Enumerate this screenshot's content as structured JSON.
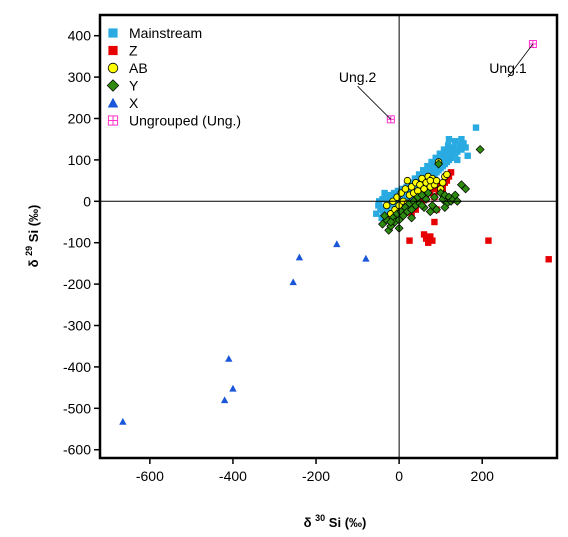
{
  "chart_data": {
    "type": "scatter",
    "xlabel_prefix": "δ",
    "xlabel_sup": "30",
    "xlabel_suffix": "Si (‰)",
    "ylabel_prefix": "δ",
    "ylabel_sup": "29",
    "ylabel_suffix": "Si (‰)",
    "xlim": [
      -720,
      380
    ],
    "ylim": [
      -620,
      450
    ],
    "xticks": [
      -600,
      -400,
      -200,
      0,
      200
    ],
    "yticks": [
      400,
      300,
      200,
      100,
      0,
      -100,
      -200,
      -300,
      -400,
      -500,
      -600
    ],
    "grid": false,
    "zero_lines": true,
    "legend_position": "top-left",
    "series": [
      {
        "name": "Mainstream",
        "marker": "square",
        "color": "#29abe2",
        "points": [
          [
            -50,
            -10
          ],
          [
            -45,
            -20
          ],
          [
            -40,
            5
          ],
          [
            -38,
            -30
          ],
          [
            -35,
            -15
          ],
          [
            -30,
            10
          ],
          [
            -28,
            -25
          ],
          [
            -25,
            -5
          ],
          [
            -22,
            15
          ],
          [
            -20,
            -35
          ],
          [
            -18,
            -10
          ],
          [
            -15,
            5
          ],
          [
            -12,
            20
          ],
          [
            -10,
            -20
          ],
          [
            -8,
            -5
          ],
          [
            -5,
            10
          ],
          [
            -3,
            25
          ],
          [
            0,
            -15
          ],
          [
            2,
            0
          ],
          [
            5,
            15
          ],
          [
            7,
            30
          ],
          [
            10,
            -10
          ],
          [
            12,
            5
          ],
          [
            15,
            20
          ],
          [
            18,
            35
          ],
          [
            20,
            0
          ],
          [
            22,
            15
          ],
          [
            25,
            30
          ],
          [
            28,
            45
          ],
          [
            30,
            10
          ],
          [
            32,
            25
          ],
          [
            35,
            40
          ],
          [
            38,
            55
          ],
          [
            40,
            20
          ],
          [
            42,
            35
          ],
          [
            45,
            50
          ],
          [
            48,
            65
          ],
          [
            50,
            30
          ],
          [
            52,
            45
          ],
          [
            55,
            60
          ],
          [
            58,
            75
          ],
          [
            60,
            40
          ],
          [
            62,
            55
          ],
          [
            65,
            70
          ],
          [
            68,
            85
          ],
          [
            70,
            50
          ],
          [
            72,
            65
          ],
          [
            75,
            80
          ],
          [
            78,
            95
          ],
          [
            80,
            60
          ],
          [
            82,
            75
          ],
          [
            85,
            90
          ],
          [
            88,
            105
          ],
          [
            90,
            70
          ],
          [
            92,
            85
          ],
          [
            95,
            100
          ],
          [
            98,
            115
          ],
          [
            100,
            80
          ],
          [
            102,
            95
          ],
          [
            105,
            110
          ],
          [
            108,
            125
          ],
          [
            110,
            90
          ],
          [
            112,
            105
          ],
          [
            115,
            120
          ],
          [
            118,
            135
          ],
          [
            120,
            100
          ],
          [
            125,
            115
          ],
          [
            130,
            130
          ],
          [
            135,
            145
          ],
          [
            140,
            120
          ],
          [
            145,
            135
          ],
          [
            150,
            150
          ],
          [
            155,
            140
          ],
          [
            160,
            130
          ],
          [
            185,
            178
          ],
          [
            165,
            110
          ],
          [
            -55,
            -30
          ],
          [
            -48,
            0
          ],
          [
            -42,
            -40
          ],
          [
            -35,
            20
          ],
          [
            -25,
            -45
          ],
          [
            -15,
            -30
          ],
          [
            -5,
            -25
          ],
          [
            5,
            -5
          ],
          [
            15,
            5
          ],
          [
            25,
            10
          ],
          [
            35,
            15
          ],
          [
            45,
            25
          ],
          [
            55,
            35
          ],
          [
            65,
            45
          ],
          [
            75,
            55
          ],
          [
            85,
            65
          ],
          [
            95,
            75
          ],
          [
            105,
            85
          ],
          [
            115,
            95
          ],
          [
            125,
            105
          ],
          [
            135,
            115
          ],
          [
            140,
            100
          ],
          [
            150,
            125
          ],
          [
            120,
            150
          ]
        ]
      },
      {
        "name": "Z",
        "marker": "square",
        "color": "#e60000",
        "points": [
          [
            30,
            -30
          ],
          [
            35,
            -10
          ],
          [
            40,
            -20
          ],
          [
            45,
            0
          ],
          [
            50,
            10
          ],
          [
            55,
            -5
          ],
          [
            60,
            15
          ],
          [
            65,
            5
          ],
          [
            70,
            25
          ],
          [
            75,
            20
          ],
          [
            80,
            30
          ],
          [
            85,
            10
          ],
          [
            90,
            35
          ],
          [
            95,
            25
          ],
          [
            100,
            40
          ],
          [
            105,
            20
          ],
          [
            110,
            45
          ],
          [
            115,
            50
          ],
          [
            120,
            60
          ],
          [
            125,
            70
          ],
          [
            60,
            -80
          ],
          [
            65,
            -90
          ],
          [
            70,
            -100
          ],
          [
            75,
            -85
          ],
          [
            80,
            -95
          ],
          [
            25,
            -95
          ],
          [
            85,
            -50
          ],
          [
            90,
            -20
          ],
          [
            105,
            30
          ],
          [
            215,
            -95
          ],
          [
            360,
            -140
          ]
        ]
      },
      {
        "name": "AB",
        "marker": "circle",
        "color": "#ffff00",
        "points": [
          [
            -25,
            -45
          ],
          [
            -20,
            -30
          ],
          [
            -15,
            0
          ],
          [
            -10,
            -20
          ],
          [
            -5,
            10
          ],
          [
            0,
            -10
          ],
          [
            5,
            20
          ],
          [
            10,
            0
          ],
          [
            15,
            30
          ],
          [
            20,
            -5
          ],
          [
            25,
            15
          ],
          [
            30,
            35
          ],
          [
            35,
            20
          ],
          [
            40,
            45
          ],
          [
            45,
            25
          ],
          [
            50,
            40
          ],
          [
            55,
            55
          ],
          [
            60,
            30
          ],
          [
            65,
            45
          ],
          [
            70,
            60
          ],
          [
            75,
            35
          ],
          [
            80,
            55
          ],
          [
            85,
            40
          ],
          [
            90,
            50
          ],
          [
            95,
            95
          ],
          [
            100,
            30
          ],
          [
            105,
            45
          ],
          [
            110,
            60
          ],
          [
            115,
            65
          ],
          [
            75,
            50
          ],
          [
            -30,
            -10
          ],
          [
            20,
            50
          ]
        ]
      },
      {
        "name": "Y",
        "marker": "diamond",
        "color": "#2e8b0f",
        "points": [
          [
            -40,
            -55
          ],
          [
            -30,
            -45
          ],
          [
            -25,
            -70
          ],
          [
            -20,
            -60
          ],
          [
            -15,
            -40
          ],
          [
            -10,
            -50
          ],
          [
            -5,
            -30
          ],
          [
            0,
            -45
          ],
          [
            5,
            -25
          ],
          [
            10,
            -35
          ],
          [
            15,
            -15
          ],
          [
            20,
            -25
          ],
          [
            25,
            -5
          ],
          [
            30,
            -20
          ],
          [
            35,
            0
          ],
          [
            40,
            -10
          ],
          [
            45,
            10
          ],
          [
            50,
            -5
          ],
          [
            55,
            15
          ],
          [
            60,
            -15
          ],
          [
            65,
            5
          ],
          [
            70,
            20
          ],
          [
            75,
            -25
          ],
          [
            80,
            -10
          ],
          [
            85,
            10
          ],
          [
            90,
            -20
          ],
          [
            95,
            90
          ],
          [
            100,
            20
          ],
          [
            105,
            5
          ],
          [
            110,
            15
          ],
          [
            115,
            -5
          ],
          [
            120,
            10
          ],
          [
            125,
            0
          ],
          [
            130,
            5
          ],
          [
            135,
            15
          ],
          [
            150,
            40
          ],
          [
            160,
            30
          ],
          [
            195,
            125
          ],
          [
            -35,
            -35
          ],
          [
            0,
            -65
          ],
          [
            -20,
            -50
          ],
          [
            55,
            -10
          ],
          [
            110,
            -15
          ],
          [
            140,
            0
          ],
          [
            30,
            -40
          ]
        ]
      },
      {
        "name": "X",
        "marker": "triangle",
        "color": "#1a56d9",
        "points": [
          [
            -665,
            -532
          ],
          [
            -420,
            -480
          ],
          [
            -410,
            -380
          ],
          [
            -400,
            -452
          ],
          [
            -255,
            -195
          ],
          [
            -240,
            -135
          ],
          [
            -150,
            -103
          ],
          [
            -80,
            -138
          ]
        ]
      },
      {
        "name": "Ungrouped (Ung.)",
        "marker": "boxplus",
        "color": "#ff33cc",
        "points": [
          [
            -20,
            198
          ],
          [
            322,
            380
          ]
        ]
      }
    ],
    "annotations": [
      {
        "text": "Ung.2",
        "target": [
          -20,
          198
        ],
        "anchor": [
          -100,
          278
        ]
      },
      {
        "text": "Ung.1",
        "target": [
          322,
          380
        ],
        "anchor": [
          262,
          300
        ]
      }
    ]
  }
}
